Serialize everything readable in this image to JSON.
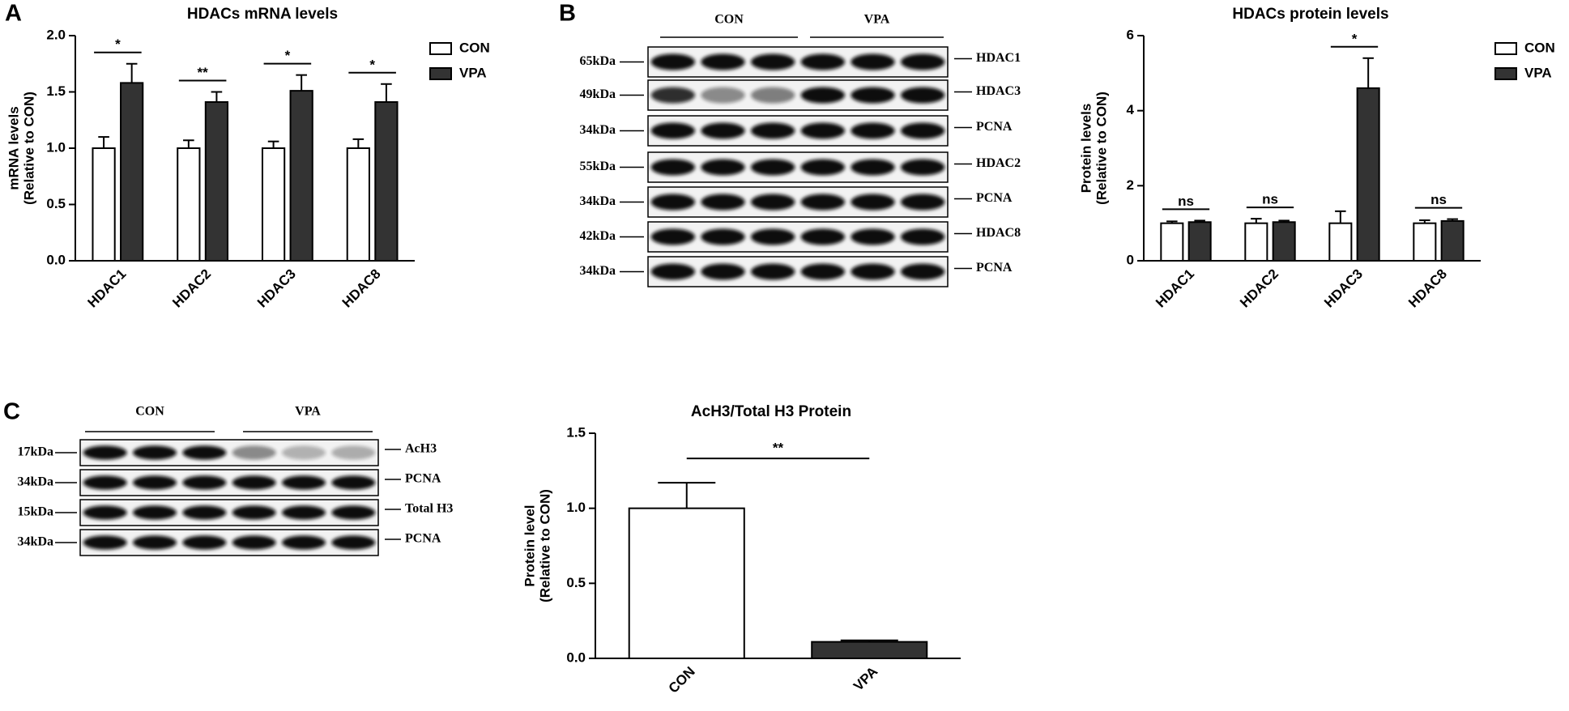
{
  "panels": [
    "A",
    "B",
    "C"
  ],
  "chart_data": [
    {
      "type": "bar",
      "title": "HDACs mRNA levels",
      "ylabel": [
        "mRNA levels",
        "(Relative to CON)"
      ],
      "categories": [
        "HDAC1",
        "HDAC2",
        "HDAC3",
        "HDAC8"
      ],
      "series": [
        {
          "name": "CON",
          "color": "#ffffff",
          "values": [
            1.0,
            1.0,
            1.0,
            1.0
          ],
          "errors": [
            0.1,
            0.07,
            0.06,
            0.08
          ]
        },
        {
          "name": "VPA",
          "color": "#333333",
          "values": [
            1.58,
            1.41,
            1.51,
            1.41
          ],
          "errors": [
            0.17,
            0.09,
            0.14,
            0.16
          ]
        }
      ],
      "significance": [
        "*",
        "**",
        "*",
        "*"
      ],
      "ylim": [
        0,
        2
      ],
      "yticks": [
        {
          "value": 0,
          "label": "0.0"
        },
        {
          "value": 0.5,
          "label": "0.5"
        },
        {
          "value": 1,
          "label": "1.0"
        },
        {
          "value": 1.5,
          "label": "1.5"
        },
        {
          "value": 2,
          "label": "2.0"
        }
      ]
    },
    {
      "type": "bar",
      "title": "HDACs protein levels",
      "ylabel": [
        "Protein levels",
        "(Relative to CON)"
      ],
      "categories": [
        "HDAC1",
        "HDAC2",
        "HDAC3",
        "HDAC8"
      ],
      "series": [
        {
          "name": "CON",
          "color": "#ffffff",
          "values": [
            1.0,
            1.0,
            1.0,
            1.0
          ],
          "errors": [
            0.05,
            0.12,
            0.32,
            0.08
          ]
        },
        {
          "name": "VPA",
          "color": "#333333",
          "values": [
            1.03,
            1.03,
            4.6,
            1.06
          ],
          "errors": [
            0.04,
            0.04,
            0.8,
            0.05
          ]
        }
      ],
      "significance": [
        "ns",
        "ns",
        "*",
        "ns"
      ],
      "ylim": [
        0,
        6
      ],
      "yticks": [
        0,
        2,
        4,
        6
      ]
    },
    {
      "type": "bar",
      "title": "AcH3/Total H3 Protein",
      "ylabel": [
        "Protein level",
        "(Relative to CON)"
      ],
      "categories": [
        "CON",
        "VPA"
      ],
      "values": [
        1.0,
        0.11
      ],
      "errors": [
        0.17,
        0.01
      ],
      "colors": [
        "#ffffff",
        "#333333"
      ],
      "significance": "**",
      "ylim": [
        0,
        1.5
      ],
      "yticks": [
        {
          "value": 0,
          "label": "0.0"
        },
        {
          "value": 0.5,
          "label": "0.5"
        },
        {
          "value": 1,
          "label": "1.0"
        },
        {
          "value": 1.5,
          "label": "1.5"
        }
      ]
    }
  ],
  "blots": [
    {
      "groups": [
        "CON",
        "VPA"
      ],
      "rows": [
        {
          "marker": "65kDa",
          "protein": "HDAC1"
        },
        {
          "marker": "49kDa",
          "protein": "HDAC3"
        },
        {
          "marker": "34kDa",
          "protein": "PCNA"
        },
        {
          "marker": "55kDa",
          "protein": "HDAC2"
        },
        {
          "marker": "34kDa",
          "protein": "PCNA"
        },
        {
          "marker": "42kDa",
          "protein": "HDAC8"
        },
        {
          "marker": "34kDa",
          "protein": "PCNA"
        }
      ]
    },
    {
      "groups": [
        "CON",
        "VPA"
      ],
      "rows": [
        {
          "marker": "17kDa",
          "protein": "AcH3"
        },
        {
          "marker": "34kDa",
          "protein": "PCNA"
        },
        {
          "marker": "15kDa",
          "protein": "Total H3"
        },
        {
          "marker": "34kDa",
          "protein": "PCNA"
        }
      ]
    }
  ]
}
